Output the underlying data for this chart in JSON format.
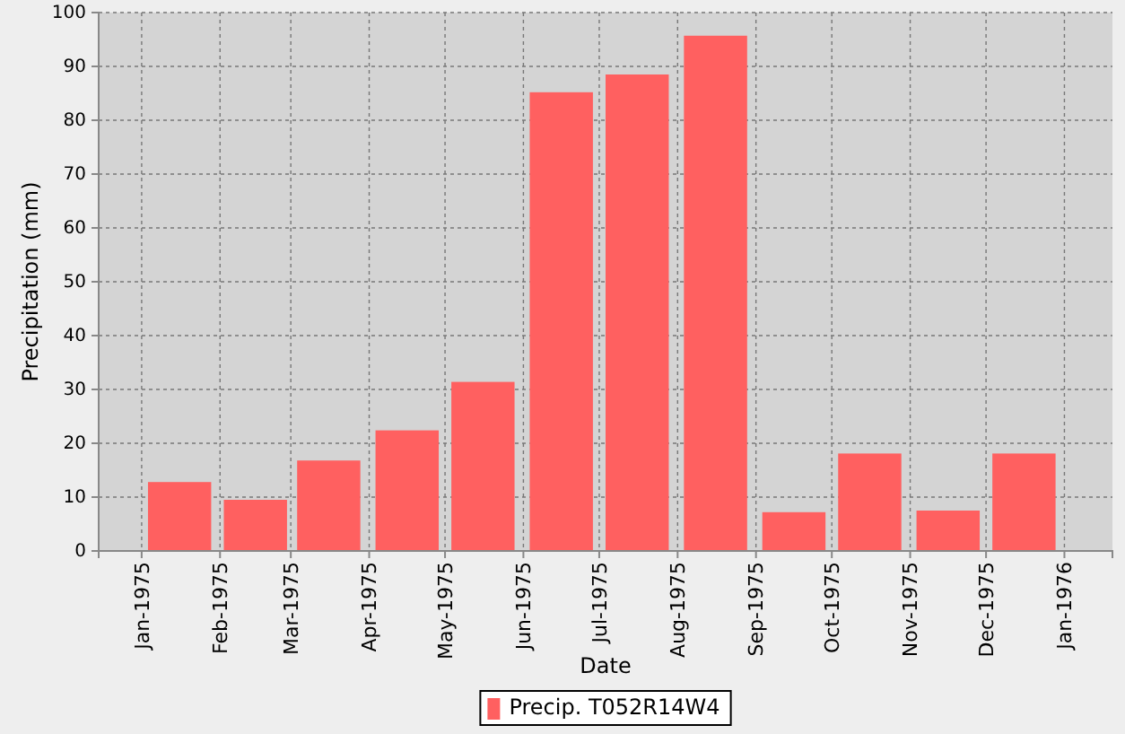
{
  "chart_data": {
    "type": "bar",
    "xlabel": "Date",
    "ylabel": "Precipitation (mm)",
    "x": [
      "1975-01-16",
      "1975-02-15",
      "1975-03-16",
      "1975-04-16",
      "1975-05-16",
      "1975-06-16",
      "1975-07-16",
      "1975-08-16",
      "1975-09-16",
      "1975-10-16",
      "1975-11-16",
      "1975-12-16"
    ],
    "series": [
      {
        "name": "Precip. T052R14W4",
        "color": "#ff6060",
        "values": [
          12.8,
          9.5,
          16.8,
          22.4,
          31.4,
          85.2,
          88.5,
          95.7,
          7.2,
          18.1,
          7.5,
          18.1
        ]
      }
    ],
    "xlim": [
      "1974-12-15",
      "1976-01-20"
    ],
    "xticks": [
      {
        "value": "1975-01",
        "label": "Jan-1975"
      },
      {
        "value": "1975-02",
        "label": "Feb-1975"
      },
      {
        "value": "1975-03",
        "label": "Mar-1975"
      },
      {
        "value": "1975-04",
        "label": "Apr-1975"
      },
      {
        "value": "1975-05",
        "label": "May-1975"
      },
      {
        "value": "1975-06",
        "label": "Jun-1975"
      },
      {
        "value": "1975-07",
        "label": "Jul-1975"
      },
      {
        "value": "1975-08",
        "label": "Aug-1975"
      },
      {
        "value": "1975-09",
        "label": "Sep-1975"
      },
      {
        "value": "1975-10",
        "label": "Oct-1975"
      },
      {
        "value": "1975-11",
        "label": "Nov-1975"
      },
      {
        "value": "1975-12",
        "label": "Dec-1975"
      },
      {
        "value": "1976-01",
        "label": "Jan-1976"
      }
    ],
    "ylim": [
      0,
      100
    ],
    "yticks": [
      0,
      10,
      20,
      30,
      40,
      50,
      60,
      70,
      80,
      90,
      100
    ],
    "grid": true,
    "legend": "bottom"
  }
}
